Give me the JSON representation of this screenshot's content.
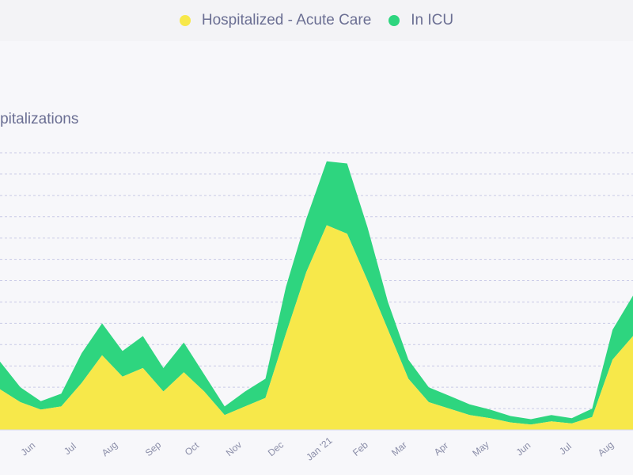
{
  "legend": {
    "acute_label": "Hospitalized - Acute Care",
    "icu_label": "In ICU"
  },
  "chart_data": {
    "type": "area",
    "stacked": true,
    "title": "Hospitalizations",
    "visible_title": "ospitalizations",
    "colors": {
      "acute": "#f7e84a",
      "icu": "#2ed57f",
      "grid": "#c9cae6",
      "axis": "#8a8da8"
    },
    "ylim": [
      0,
      1300
    ],
    "grid_step": 100,
    "grid_lines_visible": 13,
    "x_ticks": [
      "Jun",
      "Jul",
      "Aug",
      "Sep",
      "Oct",
      "Nov",
      "Dec",
      "Jan '21",
      "Feb",
      "Mar",
      "Apr",
      "May",
      "Jun",
      "Jul",
      "Aug"
    ],
    "visible_tick_labels": [
      "Jun",
      "Jul",
      "Aug",
      "Sep",
      "Oct",
      "Nov",
      "Dec",
      "Jan '21",
      "Feb",
      "Mar",
      "Apr",
      "May",
      "Jun",
      "Jul",
      "Aug"
    ],
    "x": [
      "May 20",
      "Jun 1",
      "Jun 15",
      "Jul 1",
      "Jul 15",
      "Aug 1",
      "Aug 15",
      "Sep 1",
      "Sep 15",
      "Oct 1",
      "Oct 15",
      "Nov 1",
      "Nov 15",
      "Dec 1",
      "Dec 15",
      "Jan 1",
      "Jan 8",
      "Jan 15",
      "Feb 1",
      "Feb 15",
      "Mar 1",
      "Mar 15",
      "Apr 1",
      "Apr 15",
      "May 1",
      "May 15",
      "Jun 1",
      "Jun 15",
      "Jul 1",
      "Jul 15",
      "Aug 1",
      "Aug 15"
    ],
    "series": [
      {
        "name": "Hospitalized - Acute Care",
        "key": "acute",
        "values": [
          190,
          130,
          95,
          110,
          220,
          350,
          250,
          290,
          180,
          270,
          180,
          70,
          110,
          150,
          450,
          740,
          960,
          920,
          700,
          470,
          240,
          130,
          100,
          70,
          55,
          35,
          25,
          40,
          30,
          60,
          330,
          440
        ]
      },
      {
        "name": "In ICU",
        "key": "icu",
        "values": [
          130,
          70,
          40,
          60,
          140,
          150,
          120,
          150,
          110,
          140,
          80,
          40,
          70,
          90,
          220,
          250,
          300,
          330,
          250,
          130,
          90,
          70,
          60,
          50,
          40,
          30,
          25,
          30,
          25,
          40,
          140,
          190
        ]
      }
    ]
  }
}
